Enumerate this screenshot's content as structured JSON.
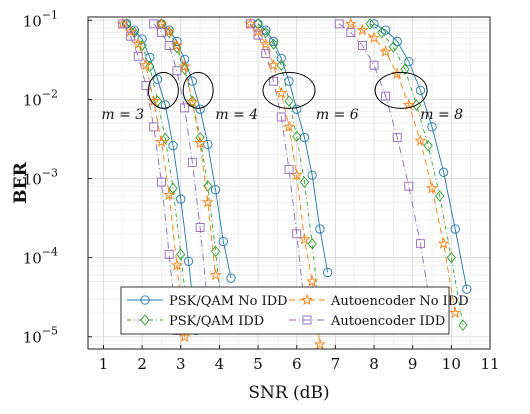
{
  "chart_data": {
    "type": "line",
    "xlabel": "SNR (dB)",
    "ylabel": "BER",
    "xlim": [
      0.6,
      11
    ],
    "ylim": [
      7e-06,
      0.11
    ],
    "yscale": "log",
    "x_ticks": [
      1,
      2,
      3,
      4,
      5,
      6,
      7,
      8,
      9,
      10,
      11
    ],
    "y_ticks": [
      {
        "value": 0.1,
        "base": "10",
        "exp": "−1"
      },
      {
        "value": 0.01,
        "base": "10",
        "exp": "−2"
      },
      {
        "value": 0.001,
        "base": "10",
        "exp": "−3"
      },
      {
        "value": 0.0001,
        "base": "10",
        "exp": "−4"
      },
      {
        "value": 1e-05,
        "base": "10",
        "exp": "−5"
      }
    ],
    "grid": true,
    "legend_position": "bottom-center",
    "legend": [
      {
        "series": "psk_noidd",
        "label": "PSK/QAM No IDD"
      },
      {
        "series": "ae_noidd",
        "label": "Autoencoder No IDD"
      },
      {
        "series": "psk_idd",
        "label": "PSK/QAM IDD"
      },
      {
        "series": "ae_idd",
        "label": "Autoencoder IDD"
      }
    ],
    "styles": {
      "psk_noidd": {
        "color": "#1f77b4",
        "marker": "circle",
        "dash": ""
      },
      "psk_idd": {
        "color": "#2ca02c",
        "marker": "diamond",
        "dash": "4 3 1 3"
      },
      "ae_noidd": {
        "color": "#ff7f0e",
        "marker": "star",
        "dash": "6 4"
      },
      "ae_idd": {
        "color": "#9467bd",
        "marker": "square",
        "dash": "7 3 1 3"
      }
    },
    "annotations": [
      {
        "text": "m = 3",
        "ellipse_x": 2.55,
        "ellipse_y": 0.013,
        "label_x": 1.5,
        "label_y": 0.0065
      },
      {
        "text": "m = 4",
        "ellipse_x": 3.45,
        "ellipse_y": 0.013,
        "label_x": 4.45,
        "label_y": 0.0065
      },
      {
        "text": "m = 6",
        "ellipse_x": 5.8,
        "ellipse_y": 0.013,
        "label_x": 7.05,
        "label_y": 0.0065
      },
      {
        "text": "m = 8",
        "ellipse_x": 8.7,
        "ellipse_y": 0.013,
        "label_x": 9.75,
        "label_y": 0.0065
      }
    ],
    "groups": [
      {
        "m": 3,
        "series": [
          {
            "key": "psk_noidd",
            "x": [
              1.6,
              1.8,
              2.0,
              2.2,
              2.4,
              2.6,
              2.8,
              3.0,
              3.2,
              3.4
            ],
            "y": [
              0.09,
              0.075,
              0.058,
              0.034,
              0.018,
              0.0085,
              0.0026,
              0.00055,
              9e-05,
              1.2e-05
            ]
          },
          {
            "key": "psk_idd",
            "x": [
              1.6,
              1.8,
              2.0,
              2.2,
              2.4,
              2.6,
              2.8,
              3.0,
              3.2
            ],
            "y": [
              0.09,
              0.07,
              0.048,
              0.026,
              0.0095,
              0.0032,
              0.00075,
              0.00011,
              1.5e-05
            ]
          },
          {
            "key": "ae_noidd",
            "x": [
              1.5,
              1.7,
              1.9,
              2.1,
              2.3,
              2.5,
              2.7,
              2.9,
              3.1
            ],
            "y": [
              0.09,
              0.072,
              0.05,
              0.027,
              0.0095,
              0.0029,
              0.00062,
              8e-05,
              1e-05
            ]
          },
          {
            "key": "ae_idd",
            "x": [
              1.5,
              1.7,
              1.9,
              2.1,
              2.3,
              2.5,
              2.7,
              2.9
            ],
            "y": [
              0.09,
              0.063,
              0.035,
              0.015,
              0.0045,
              0.0009,
              0.00011,
              1.2e-05
            ]
          }
        ]
      },
      {
        "m": 4,
        "series": [
          {
            "key": "psk_noidd",
            "x": [
              2.5,
              2.7,
              2.9,
              3.1,
              3.3,
              3.5,
              3.7,
              3.9,
              4.1,
              4.3
            ],
            "y": [
              0.09,
              0.075,
              0.054,
              0.032,
              0.017,
              0.0075,
              0.0027,
              0.00072,
              0.00016,
              5.5e-05
            ]
          },
          {
            "key": "psk_idd",
            "x": [
              2.5,
              2.7,
              2.9,
              3.1,
              3.3,
              3.5,
              3.7,
              3.9,
              4.1
            ],
            "y": [
              0.09,
              0.07,
              0.045,
              0.024,
              0.0095,
              0.0033,
              0.0008,
              0.00012,
              1.5e-05
            ]
          },
          {
            "key": "ae_noidd",
            "x": [
              2.5,
              2.7,
              2.9,
              3.1,
              3.3,
              3.5,
              3.7,
              3.9
            ],
            "y": [
              0.09,
              0.072,
              0.048,
              0.026,
              0.0092,
              0.0028,
              0.0005,
              6e-05
            ]
          },
          {
            "key": "ae_idd",
            "x": [
              2.3,
              2.5,
              2.7,
              2.9,
              3.1,
              3.3,
              3.5,
              3.7
            ],
            "y": [
              0.09,
              0.07,
              0.048,
              0.023,
              0.0078,
              0.0016,
              0.00024,
              2.5e-05
            ]
          }
        ]
      },
      {
        "m": 6,
        "series": [
          {
            "key": "psk_noidd",
            "x": [
              5.0,
              5.2,
              5.4,
              5.6,
              5.8,
              6.0,
              6.2,
              6.4,
              6.6,
              6.8
            ],
            "y": [
              0.09,
              0.075,
              0.054,
              0.033,
              0.017,
              0.0075,
              0.0033,
              0.0011,
              0.00023,
              6.5e-05
            ]
          },
          {
            "key": "psk_idd",
            "x": [
              5.0,
              5.2,
              5.4,
              5.6,
              5.8,
              6.0,
              6.2,
              6.4,
              6.6
            ],
            "y": [
              0.09,
              0.07,
              0.05,
              0.027,
              0.0095,
              0.0034,
              0.0009,
              0.00015,
              1.8e-05
            ]
          },
          {
            "key": "ae_noidd",
            "x": [
              4.8,
              5.0,
              5.2,
              5.4,
              5.6,
              5.8,
              6.0,
              6.2,
              6.4,
              6.6
            ],
            "y": [
              0.09,
              0.072,
              0.05,
              0.027,
              0.012,
              0.0045,
              0.0011,
              0.00017,
              5e-05,
              8e-06
            ]
          },
          {
            "key": "ae_idd",
            "x": [
              4.8,
              5.0,
              5.2,
              5.4,
              5.6,
              5.8,
              6.0,
              6.2
            ],
            "y": [
              0.09,
              0.065,
              0.038,
              0.017,
              0.006,
              0.0013,
              0.0002,
              2.5e-05
            ]
          }
        ]
      },
      {
        "m": 8,
        "series": [
          {
            "key": "psk_noidd",
            "x": [
              8.0,
              8.3,
              8.6,
              8.9,
              9.2,
              9.5,
              9.8,
              10.1,
              10.4
            ],
            "y": [
              0.09,
              0.075,
              0.054,
              0.03,
              0.013,
              0.0045,
              0.0012,
              0.00023,
              4e-05
            ]
          },
          {
            "key": "psk_idd",
            "x": [
              7.9,
              8.2,
              8.5,
              8.8,
              9.1,
              9.4,
              9.7,
              10.0,
              10.3
            ],
            "y": [
              0.09,
              0.07,
              0.046,
              0.024,
              0.0085,
              0.0026,
              0.0006,
              0.0001,
              1.4e-05
            ]
          },
          {
            "key": "ae_noidd",
            "x": [
              7.4,
              7.7,
              8.0,
              8.3,
              8.6,
              8.9,
              9.2,
              9.5,
              9.8,
              10.1
            ],
            "y": [
              0.09,
              0.075,
              0.06,
              0.04,
              0.021,
              0.0085,
              0.003,
              0.00075,
              0.00015,
              2e-05
            ]
          },
          {
            "key": "ae_idd",
            "x": [
              7.1,
              7.4,
              7.7,
              8.0,
              8.3,
              8.6,
              8.9,
              9.2,
              9.5
            ],
            "y": [
              0.09,
              0.07,
              0.048,
              0.027,
              0.011,
              0.0033,
              0.0008,
              0.00015,
              1.8e-05
            ]
          }
        ]
      }
    ]
  }
}
